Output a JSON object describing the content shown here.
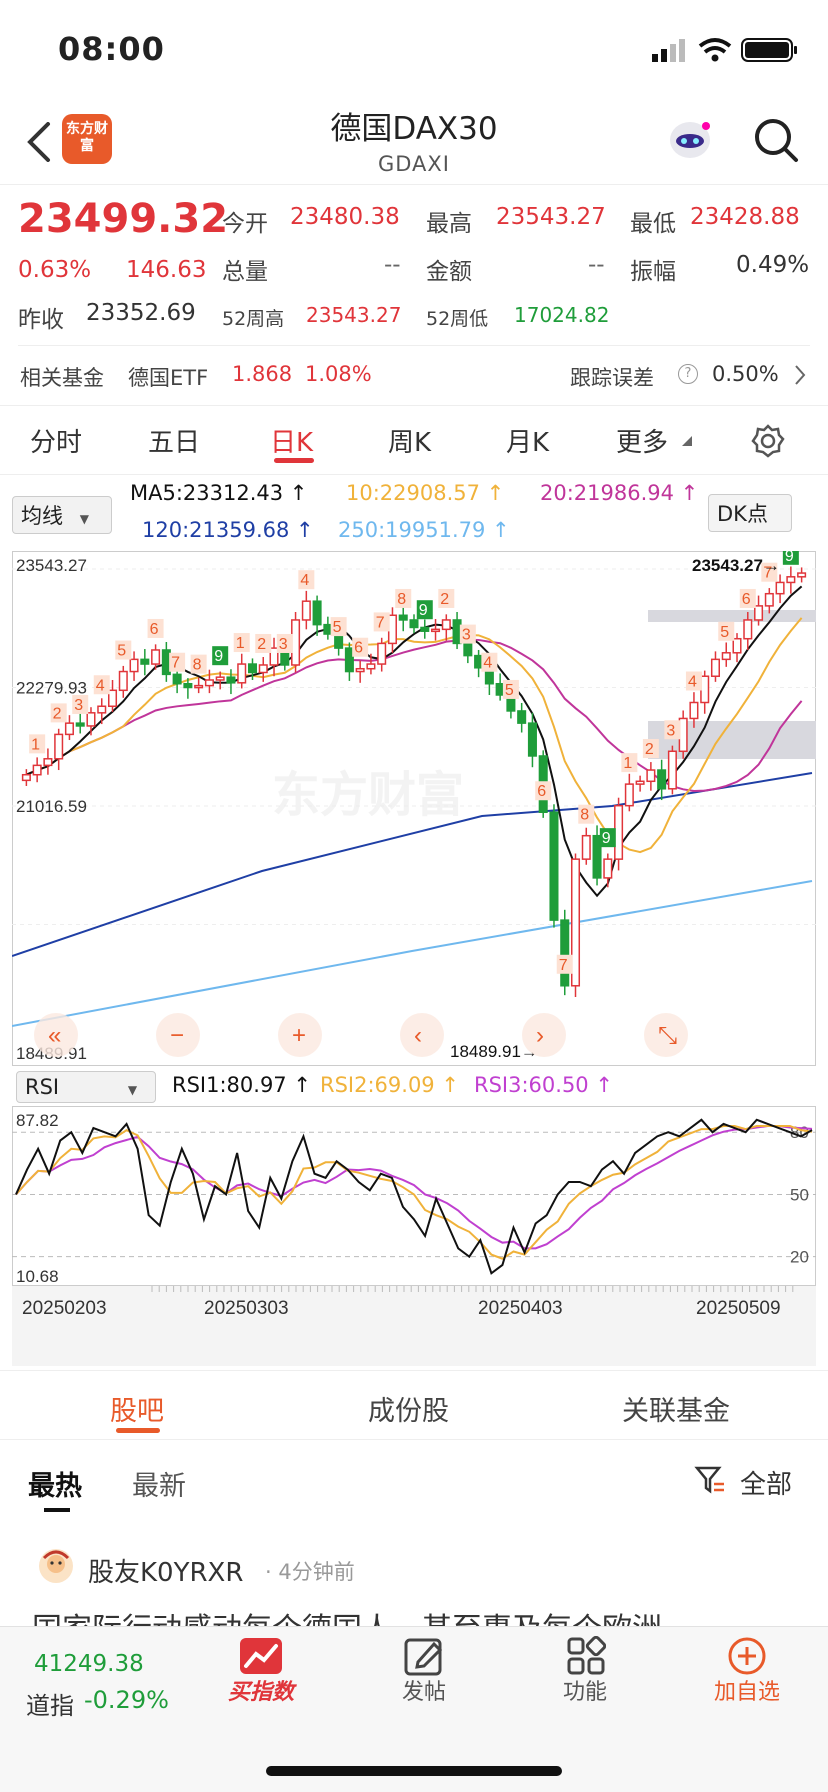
{
  "status": {
    "time": "08:00"
  },
  "header": {
    "title": "德国DAX30",
    "subtitle": "GDAXI",
    "logo_text": "东方财富"
  },
  "quote": {
    "price": "23499.32",
    "change_pct": "0.63%",
    "change": "146.63",
    "open_label": "今开",
    "open": "23480.38",
    "high_label": "最高",
    "high": "23543.27",
    "low_label": "最低",
    "low": "23428.88",
    "volume_label": "总量",
    "volume": "--",
    "amount_label": "金额",
    "amount": "--",
    "amplitude_label": "振幅",
    "amplitude": "0.49%",
    "prev_close_label": "昨收",
    "prev_close": "23352.69",
    "week52_high_label": "52周高",
    "week52_high": "23543.27",
    "week52_low_label": "52周低",
    "week52_low": "17024.82"
  },
  "fund": {
    "label": "相关基金",
    "name": "德国ETF",
    "price": "1.868",
    "pct": "1.08%",
    "tracking_label": "跟踪误差",
    "tracking": "0.50%"
  },
  "ktabs": [
    "分时",
    "五日",
    "日K",
    "周K",
    "月K",
    "更多"
  ],
  "main_indicator": {
    "selector": "均线",
    "ma5": "MA5:23312.43",
    "ma10": "10:22908.57",
    "ma20": "20:21986.94",
    "ma120": "120:21359.68",
    "ma250": "250:19951.79",
    "dk_button": "DK点"
  },
  "sub_indicator": {
    "selector": "RSI",
    "rsi1": "RSI1:80.97",
    "rsi2": "RSI2:69.09",
    "rsi3": "RSI3:60.50"
  },
  "chart_data": {
    "type": "candlestick",
    "price_ticks": [
      "23543.27",
      "22279.93",
      "21016.59",
      "18489.91"
    ],
    "max_label": "23543.27",
    "min_label": "18489.91",
    "rsi_ticks": [
      "87.82",
      "10.68"
    ],
    "rsi_levels": [
      "80",
      "50",
      "20"
    ],
    "dates": [
      "20250203",
      "20250303",
      "20250403",
      "20250509"
    ],
    "ylim": [
      18489.91,
      23543.27
    ],
    "count_labels": [
      "1",
      "2",
      "3",
      "4",
      "5",
      "6",
      "7",
      "8",
      "9",
      "1",
      "2",
      "3",
      "4",
      "5",
      "6",
      "7",
      "8",
      "9",
      "2",
      "3",
      "4",
      "5",
      "6",
      "7",
      "8",
      "9",
      "1",
      "2",
      "3",
      "4",
      "5",
      "6",
      "7",
      "9"
    ],
    "colors": {
      "up": "#e0353a",
      "down": "#1f9d3a",
      "ma5": "#111111",
      "ma10": "#f0b23a",
      "ma20": "#c0359a",
      "ma120": "#1f3fa5",
      "ma250": "#6fb8ee",
      "rsi1": "#111111",
      "rsi2": "#f0b23a",
      "rsi3": "#c040d0"
    }
  },
  "watermark": "东方财富",
  "subtabs": [
    "股吧",
    "成份股",
    "关联基金"
  ],
  "feed": {
    "sort_hot": "最热",
    "sort_new": "最新",
    "filter": "全部",
    "post_user": "股友K0YRXR",
    "post_time": "4分钟前",
    "post_text": "国家际行动感动每个德国人，甚至惠及每个欧洲"
  },
  "bottom_nav": {
    "index_value": "41249.38",
    "index_name": "道指",
    "index_change": "-0.29%",
    "buy_label": "买指数",
    "post_label": "发帖",
    "func_label": "功能",
    "add_label": "加自选"
  }
}
